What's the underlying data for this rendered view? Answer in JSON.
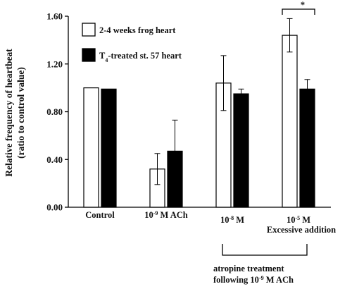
{
  "chart_data": {
    "type": "bar",
    "ylabel_line1": "Relative frequency of heartbeat",
    "ylabel_line2": "(ratio to control value)",
    "ylim": [
      0,
      1.6
    ],
    "yticks": [
      {
        "value": 0,
        "label": "0.00"
      },
      {
        "value": 0.4,
        "label": "0.40"
      },
      {
        "value": 0.8,
        "label": "0.80"
      },
      {
        "value": 1.2,
        "label": "1.20"
      },
      {
        "value": 1.6,
        "label": "1.60"
      }
    ],
    "categories": [
      {
        "id": "control",
        "label": "Control",
        "sup": "",
        "prefix": ""
      },
      {
        "id": "ach",
        "label": " M ACh",
        "prefix": "10",
        "sup": "-9"
      },
      {
        "id": "atr8",
        "label": " M",
        "prefix": "10",
        "sup": "-8"
      },
      {
        "id": "atr5",
        "label": " M",
        "prefix": "10",
        "sup": "-5",
        "label2": "Excessive addition"
      }
    ],
    "series": [
      {
        "name": "2-4 weeks frog heart",
        "fill": "#ffffff",
        "values": [
          1.0,
          0.32,
          1.04,
          1.44
        ],
        "errors": [
          0.0,
          0.13,
          0.23,
          0.14
        ]
      },
      {
        "name_prefix": "T",
        "name_sub": "4",
        "name": "-treated st. 57 heart",
        "fill": "#000000",
        "values": [
          0.99,
          0.47,
          0.95,
          0.99
        ],
        "errors": [
          0.0,
          0.26,
          0.04,
          0.08
        ]
      }
    ],
    "significance": {
      "label": "*",
      "category_index": 3
    },
    "bracket_note": {
      "line1": "atropine treatment",
      "line2_prefix": "following  10",
      "line2_sup": "-9",
      "line2_suffix": " M ACh"
    }
  }
}
